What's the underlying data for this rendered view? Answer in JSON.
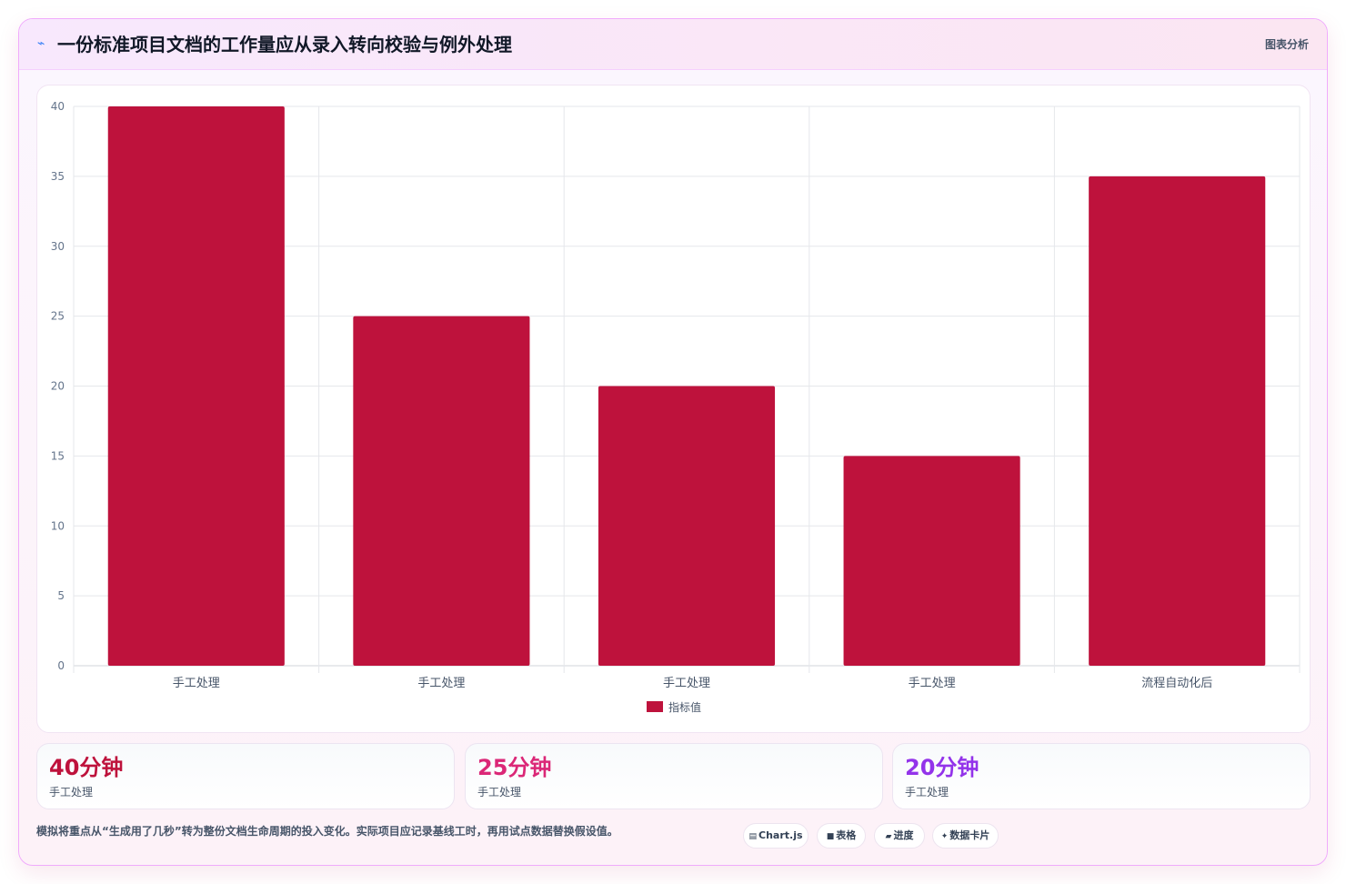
{
  "header": {
    "title_icon": "chart-spark-icon",
    "title": "一份标准项目文档的工作量应从录入转向校验与例外处理",
    "tag": "图表分析"
  },
  "chart_data": {
    "type": "bar",
    "categories": [
      "手工处理",
      "手工处理",
      "手工处理",
      "手工处理",
      "流程自动化后"
    ],
    "series": [
      {
        "name": "指标值",
        "values": [
          40,
          25,
          20,
          15,
          35
        ],
        "color": "#be123c"
      }
    ],
    "ylim": [
      0,
      40
    ],
    "yticks": [
      0,
      5,
      10,
      15,
      20,
      25,
      30,
      35,
      40
    ],
    "grid": true,
    "legend": "bottom"
  },
  "stats": [
    {
      "value": "40分钟",
      "label": "手工处理",
      "color": "#be123c"
    },
    {
      "value": "25分钟",
      "label": "手工处理",
      "color": "#db2777"
    },
    {
      "value": "20分钟",
      "label": "手工处理",
      "color": "#9333ea"
    }
  ],
  "footnote": "模拟将重点从“生成用了几秒”转为整份文档生命周期的投入变化。实际项目应记录基线工时，再用试点数据替换假设值。",
  "chips": [
    {
      "icon": "▤",
      "label": "Chart.js"
    },
    {
      "icon": "■",
      "label": "表格"
    },
    {
      "icon": "▰",
      "label": "进度"
    },
    {
      "icon": "✦",
      "label": "数据卡片"
    }
  ]
}
